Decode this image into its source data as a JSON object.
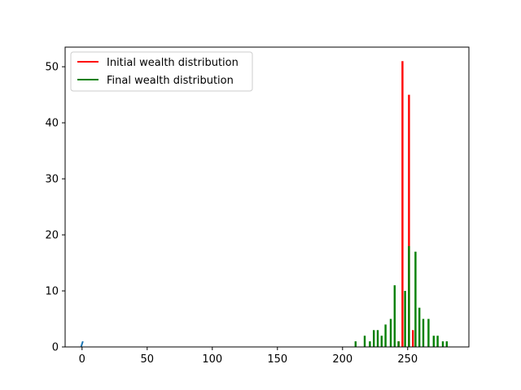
{
  "chart_data": {
    "type": "bar",
    "xlim": [
      -13,
      297
    ],
    "ylim": [
      0,
      53.5
    ],
    "xticks": [
      0,
      50,
      100,
      150,
      200,
      250
    ],
    "yticks": [
      0,
      10,
      20,
      30,
      40,
      50
    ],
    "grid": false,
    "legend_position": "upper-left",
    "colors": {
      "initial": "#ff0000",
      "final": "#008000",
      "marker": "#1f77b4"
    },
    "series": [
      {
        "name": "Initial wealth distribution",
        "color": "#ff0000",
        "x": [
          243,
          246,
          251,
          254
        ],
        "values": [
          1,
          51,
          45,
          3
        ]
      },
      {
        "name": "Final wealth distribution",
        "color": "#008000",
        "x": [
          210,
          217,
          221,
          224,
          227,
          230,
          233,
          237,
          240,
          243,
          248,
          251,
          256,
          259,
          262,
          266,
          270,
          273,
          277,
          280
        ],
        "values": [
          1,
          2,
          1,
          3,
          3,
          2,
          4,
          5,
          11,
          1,
          10,
          18,
          17,
          7,
          5,
          5,
          2,
          2,
          1,
          1
        ]
      }
    ],
    "extra_series": {
      "x": [
        0
      ],
      "values": [
        1
      ],
      "color": "#1f77b4"
    }
  }
}
